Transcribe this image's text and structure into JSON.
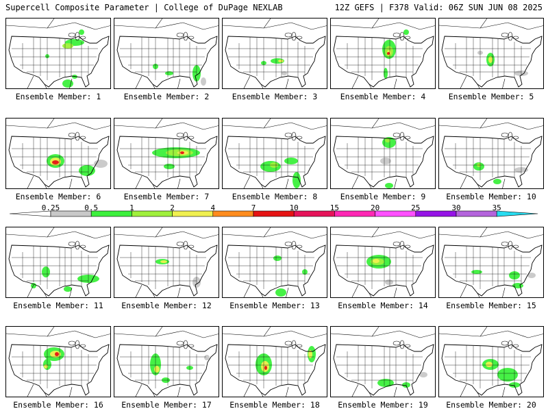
{
  "header": {
    "left_title": "Supercell Composite Parameter | College of DuPage NEXLAB",
    "right_title": "12Z GEFS | F378 Valid: 06Z SUN JUN 08 2025"
  },
  "colorbar": {
    "ticks": [
      "0.25",
      "0.5",
      "1",
      "2",
      "4",
      "7",
      "10",
      "15",
      "20",
      "25",
      "30",
      "35"
    ],
    "colors": [
      "#c8c8c8",
      "#3cf03c",
      "#a0f03c",
      "#f0f050",
      "#ff8c1e",
      "#e61414",
      "#e6145a",
      "#ff28b4",
      "#ff50ff",
      "#9614e6",
      "#b464dc",
      "#28dcf0"
    ]
  },
  "panel_label_prefix": "Ensemble Member:",
  "members": [
    {
      "id": "1",
      "label": "Ensemble Member: 1",
      "max_level": "1"
    },
    {
      "id": "2",
      "label": "Ensemble Member: 2",
      "max_level": "1"
    },
    {
      "id": "3",
      "label": "Ensemble Member: 3",
      "max_level": "1"
    },
    {
      "id": "4",
      "label": "Ensemble Member: 4",
      "max_level": "7"
    },
    {
      "id": "5",
      "label": "Ensemble Member: 5",
      "max_level": "2"
    },
    {
      "id": "6",
      "label": "Ensemble Member: 6",
      "max_level": "10"
    },
    {
      "id": "7",
      "label": "Ensemble Member: 7",
      "max_level": "7"
    },
    {
      "id": "8",
      "label": "Ensemble Member: 8",
      "max_level": "1"
    },
    {
      "id": "9",
      "label": "Ensemble Member: 9",
      "max_level": "1"
    },
    {
      "id": "10",
      "label": "Ensemble Member: 10",
      "max_level": "1"
    },
    {
      "id": "11",
      "label": "Ensemble Member: 11",
      "max_level": "1"
    },
    {
      "id": "12",
      "label": "Ensemble Member: 12",
      "max_level": "2"
    },
    {
      "id": "13",
      "label": "Ensemble Member: 13",
      "max_level": "1"
    },
    {
      "id": "14",
      "label": "Ensemble Member: 14",
      "max_level": "4"
    },
    {
      "id": "15",
      "label": "Ensemble Member: 15",
      "max_level": "1"
    },
    {
      "id": "16",
      "label": "Ensemble Member: 16",
      "max_level": "7"
    },
    {
      "id": "17",
      "label": "Ensemble Member: 17",
      "max_level": "2"
    },
    {
      "id": "18",
      "label": "Ensemble Member: 18",
      "max_level": "7"
    },
    {
      "id": "19",
      "label": "Ensemble Member: 19",
      "max_level": "1"
    },
    {
      "id": "20",
      "label": "Ensemble Member: 20",
      "max_level": "4"
    }
  ]
}
